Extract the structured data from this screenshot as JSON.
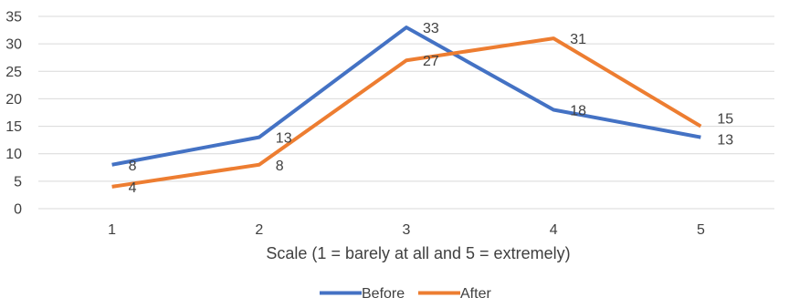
{
  "chart_data": {
    "type": "line",
    "categories": [
      "1",
      "2",
      "3",
      "4",
      "5"
    ],
    "series": [
      {
        "name": "Before",
        "values": [
          8,
          13,
          33,
          18,
          13
        ],
        "color": "#4472C4"
      },
      {
        "name": "After",
        "values": [
          4,
          8,
          27,
          31,
          15
        ],
        "color": "#ED7D31"
      }
    ],
    "xlabel": "Scale (1 = barely at all and 5 = extremely)",
    "ylabel": "",
    "ylim": [
      0,
      35
    ],
    "yticks": [
      0,
      5,
      10,
      15,
      20,
      25,
      30,
      35
    ],
    "grid": true,
    "gridline_color": "#D9D9D9",
    "legend_position": "bottom",
    "data_labels": true
  }
}
